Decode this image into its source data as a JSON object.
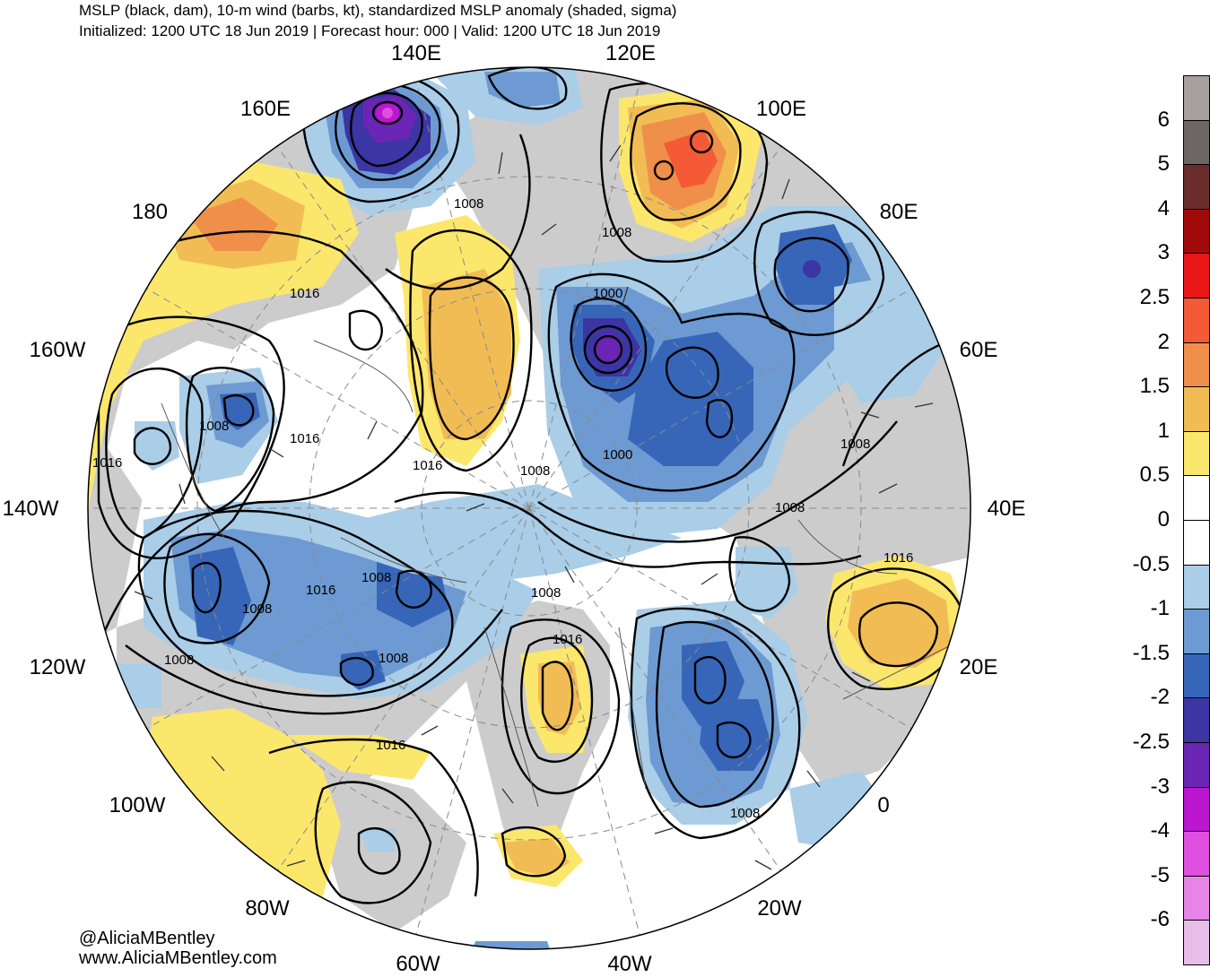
{
  "title": {
    "line1": "MSLP (black, dam), 10-m wind (barbs, kt), standardized MSLP anomaly (shaded, sigma)",
    "line2": "Initialized: 1200 UTC 18 Jun 2019 | Forecast hour: 000 | Valid: 1200 UTC 18 Jun 2019"
  },
  "longitude_labels": [
    "140E",
    "120E",
    "160E",
    "100E",
    "180",
    "80E",
    "160W",
    "60E",
    "140W",
    "40E",
    "120W",
    "20E",
    "100W",
    "0",
    "80W",
    "20W",
    "60W",
    "40W"
  ],
  "contour_labels": [
    "1008",
    "1008",
    "1016",
    "1000",
    "1016",
    "1008",
    "1016",
    "1016",
    "1008",
    "1000",
    "1008",
    "1008",
    "1016",
    "1008",
    "1016",
    "1008",
    "1008",
    "1016",
    "1008",
    "1008",
    "1016",
    "1016",
    "1008"
  ],
  "credit": {
    "line1": "@AliciaMBentley",
    "line2": "www.AliciaMBentley.com"
  },
  "colorbar": {
    "labels": [
      "6",
      "5",
      "4",
      "3",
      "2.5",
      "2",
      "1.5",
      "1",
      "0.5",
      "0",
      "-0.5",
      "-1",
      "-1.5",
      "-2",
      "-2.5",
      "-3",
      "-4",
      "-5",
      "-6"
    ],
    "colors": [
      "#a89f9f",
      "#6e6664",
      "#6b2c2c",
      "#a00a0a",
      "#e81616",
      "#f45a35",
      "#f08f4a",
      "#f2bc55",
      "#fce76d",
      "#ffffff",
      "#ffffff",
      "#aacde8",
      "#6d9ad2",
      "#3766b8",
      "#3c35a4",
      "#6a25b4",
      "#bb16d0",
      "#df4fe0",
      "#e784e8",
      "#e9bde9"
    ]
  },
  "colors": {
    "land": "#cccccc",
    "ocean": "#ffffff",
    "isobar": "#000000",
    "graticule": "#8a8a8a"
  }
}
